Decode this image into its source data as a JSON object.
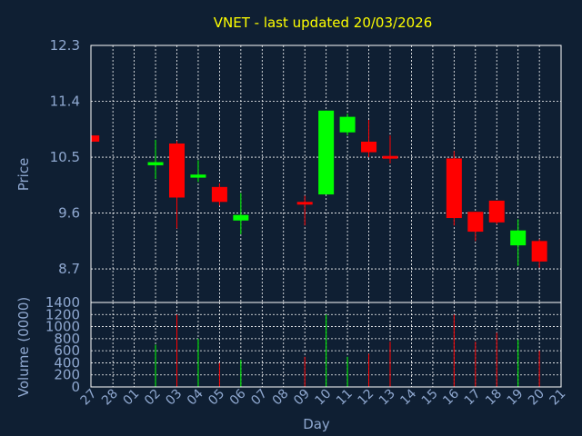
{
  "chart_data": {
    "type": "candlestick",
    "title": "VNET - last updated 20/03/2026",
    "xlabel": "Day",
    "price_panel": {
      "ylabel": "Price",
      "ylim": [
        8.16,
        12.3
      ],
      "yticks": [
        12.3,
        11.4,
        10.5,
        9.6,
        8.7
      ],
      "ytick_labels": [
        "12.3",
        "11.4",
        "10.5",
        "9.6",
        "8.7"
      ],
      "grid": true
    },
    "volume_panel": {
      "ylabel": "Volume (0000)",
      "ylim": [
        0,
        1400
      ],
      "yticks": [
        0,
        200,
        400,
        600,
        800,
        1000,
        1200,
        1400
      ],
      "ytick_labels": [
        "0",
        "200",
        "400",
        "600",
        "800",
        "1000",
        "1200",
        "1400"
      ],
      "grid": true
    },
    "x_labels": [
      "27",
      "28",
      "01",
      "02",
      "03",
      "04",
      "05",
      "06",
      "07",
      "08",
      "09",
      "10",
      "11",
      "12",
      "13",
      "14",
      "15",
      "16",
      "17",
      "18",
      "19",
      "20",
      "21"
    ],
    "up_color": "#00ff00",
    "down_color": "#ff0000",
    "candles": [
      {
        "day": "27",
        "open": 10.85,
        "close": 10.75,
        "high": 10.85,
        "low": 10.75,
        "volume": 0
      },
      {
        "day": "02",
        "open": 10.37,
        "close": 10.42,
        "high": 10.78,
        "low": 10.15,
        "volume": 700
      },
      {
        "day": "03",
        "open": 10.72,
        "close": 9.85,
        "high": 10.76,
        "low": 9.35,
        "volume": 1200
      },
      {
        "day": "04",
        "open": 10.17,
        "close": 10.22,
        "high": 10.45,
        "low": 10.1,
        "volume": 800
      },
      {
        "day": "05",
        "open": 10.02,
        "close": 9.78,
        "high": 10.08,
        "low": 9.72,
        "volume": 400
      },
      {
        "day": "06",
        "open": 9.48,
        "close": 9.57,
        "high": 9.92,
        "low": 9.26,
        "volume": 450
      },
      {
        "day": "09",
        "open": 9.78,
        "close": 9.76,
        "high": 9.88,
        "low": 9.4,
        "volume": 500
      },
      {
        "day": "10",
        "open": 9.9,
        "close": 11.25,
        "high": 11.25,
        "low": 9.9,
        "volume": 1200
      },
      {
        "day": "11",
        "open": 10.9,
        "close": 11.15,
        "high": 11.2,
        "low": 10.85,
        "volume": 500
      },
      {
        "day": "12",
        "open": 10.75,
        "close": 10.58,
        "high": 11.1,
        "low": 10.5,
        "volume": 550
      },
      {
        "day": "13",
        "open": 10.52,
        "close": 10.49,
        "high": 10.85,
        "low": 10.4,
        "volume": 750
      },
      {
        "day": "16",
        "open": 10.48,
        "close": 9.52,
        "high": 10.6,
        "low": 9.4,
        "volume": 1200
      },
      {
        "day": "17",
        "open": 9.62,
        "close": 9.3,
        "high": 9.62,
        "low": 9.15,
        "volume": 750
      },
      {
        "day": "18",
        "open": 9.8,
        "close": 9.45,
        "high": 9.8,
        "low": 9.42,
        "volume": 900
      },
      {
        "day": "19",
        "open": 9.08,
        "close": 9.32,
        "high": 9.5,
        "low": 8.75,
        "volume": 780
      },
      {
        "day": "20",
        "open": 9.15,
        "close": 8.82,
        "high": 9.18,
        "low": 8.72,
        "volume": 600
      }
    ]
  }
}
